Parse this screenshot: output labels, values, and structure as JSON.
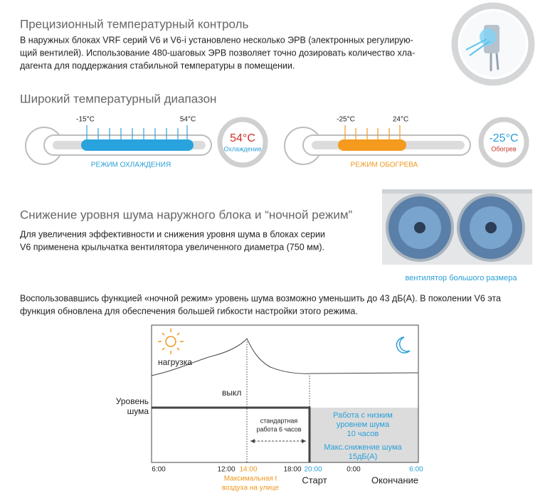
{
  "precision": {
    "title": "Прецизионный температурный контроль",
    "lines": [
      "В наружных блоках VRF серий V6 и V6-i установлено несколько ЭРВ (электронных регулирую-",
      "щий вентилей). Использование 480-шаговых ЭРВ позволяет точно дозировать количество хла-",
      "дагента для поддержания стабильной температуры в помещении."
    ]
  },
  "range": {
    "title": "Широкий температурный диапазон",
    "cooling": {
      "min": "-15°C",
      "max": "54°C",
      "mode": "РЕЖИМ ОХЛАЖДЕНИЯ",
      "badge_temp": "54°C",
      "badge_label": "Охлаждение"
    },
    "heating": {
      "min": "-25°C",
      "max": "24°C",
      "mode": "РЕЖИМ ОБОГРЕВА",
      "badge_temp": "-25°C",
      "badge_label": "Обогрев"
    }
  },
  "noise": {
    "title": "Снижение уровня шума наружного блока и “ночной режим”",
    "lines": [
      "Для увеличения эффективности и снижения уровня шума в блоках серии",
      "V6 применена крыльчатка вентилятора увеличенного диаметра (750 мм)."
    ],
    "image_caption": "вентилятор большого размера",
    "night_lines": [
      "Воспользовавшись функцией «ночной режим» уровень шума возможно уменьшить до 43 дБ(А). В поколении V6 эта",
      "функция обновлена для обеспечения большей гибкости настройки этого режима."
    ]
  },
  "diagram": {
    "load_label": "нагрузка",
    "off_label": "выкл",
    "noise_level_lines": [
      "Уровень",
      "шума"
    ],
    "standard_lines": [
      "стандартная",
      "работа 6 часов"
    ],
    "low_noise_lines": [
      "Работа с низким",
      "уровнем шума",
      "10 часов"
    ],
    "max_reduction_lines": [
      "Макс.снижение шума",
      "15дБ(А)"
    ],
    "times": [
      "6:00",
      "12:00",
      "14:00",
      "18:00",
      "20:00",
      "0:00",
      "6:00"
    ],
    "max_temp_lines": [
      "Максимальная t",
      "воздуха на улице"
    ],
    "start": "Старт",
    "end": "Окончание"
  }
}
